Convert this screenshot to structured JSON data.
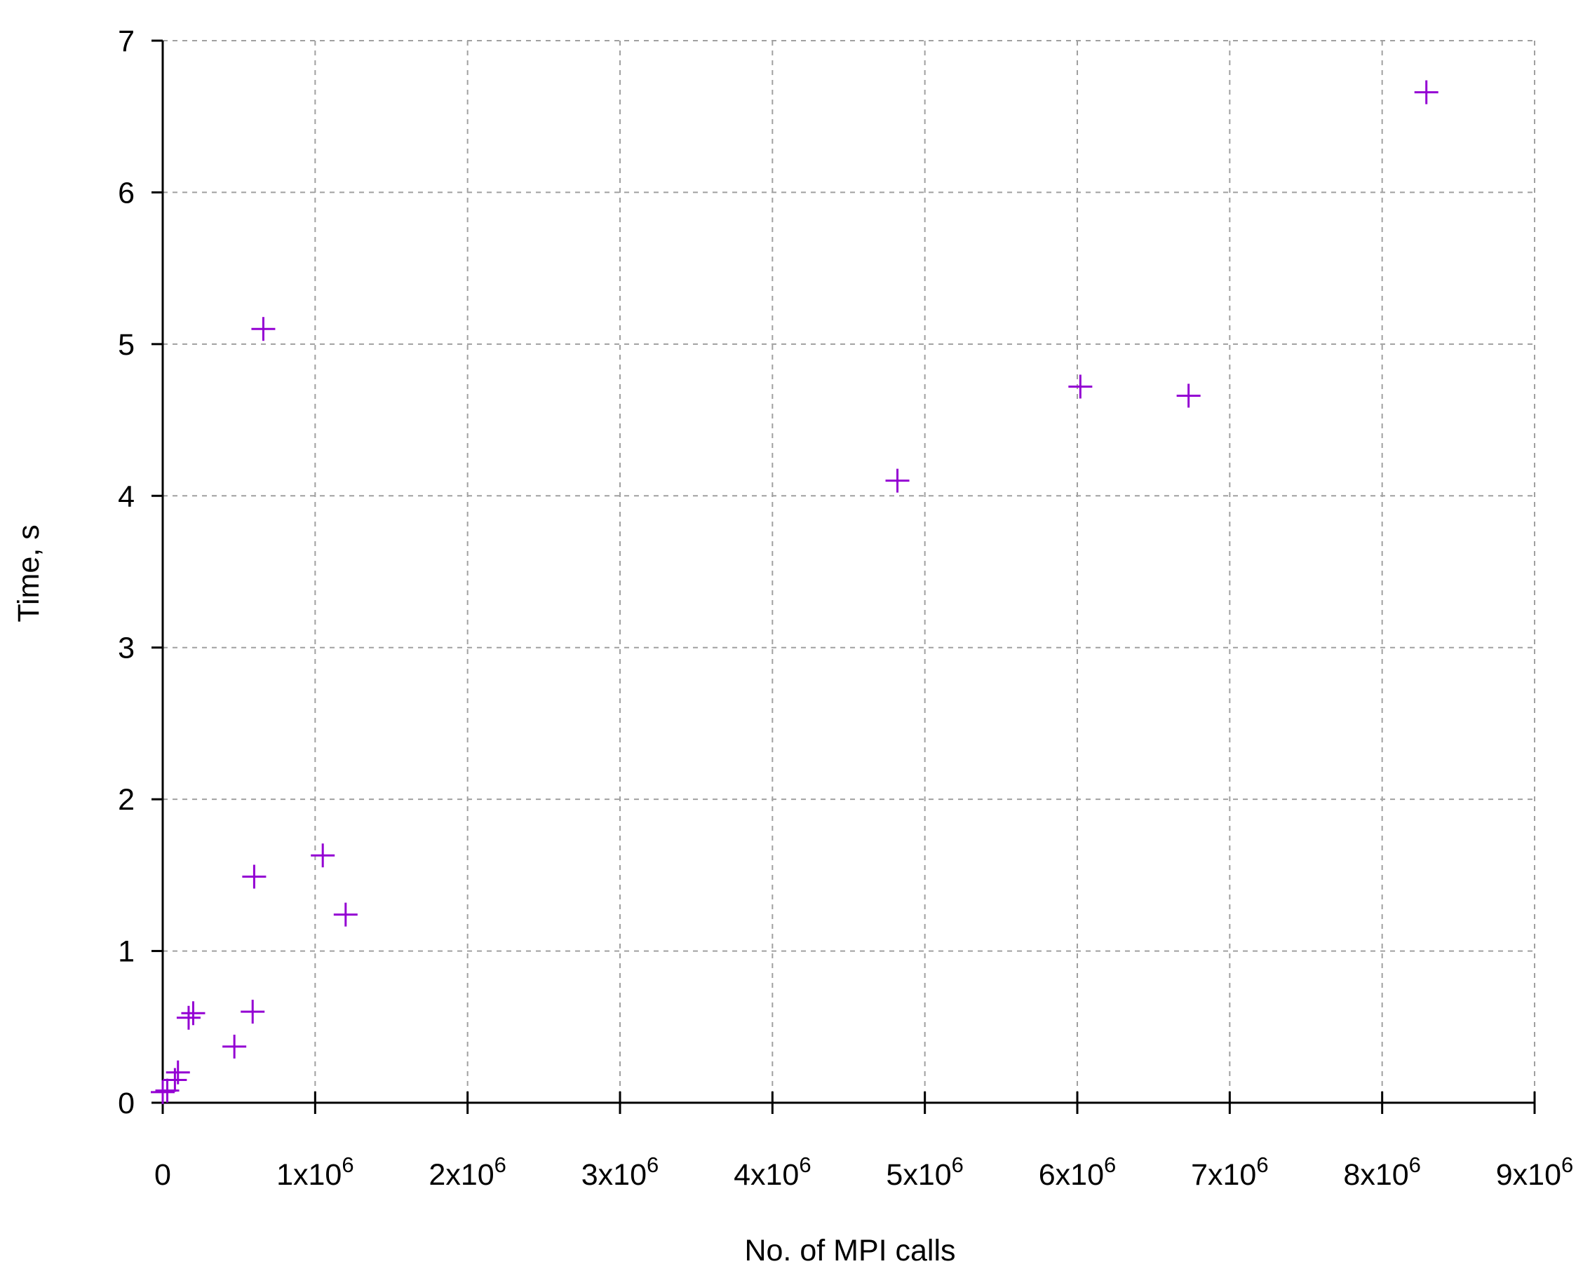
{
  "chart_data": {
    "type": "scatter",
    "title": "",
    "xlabel": "No. of MPI calls",
    "ylabel": "Time, s",
    "xlim": [
      0,
      9000000
    ],
    "ylim": [
      0,
      7
    ],
    "grid": true,
    "x_ticks": [
      {
        "value": 0,
        "base": "0",
        "exp": ""
      },
      {
        "value": 1000000,
        "base": "1x10",
        "exp": "6"
      },
      {
        "value": 2000000,
        "base": "2x10",
        "exp": "6"
      },
      {
        "value": 3000000,
        "base": "3x10",
        "exp": "6"
      },
      {
        "value": 4000000,
        "base": "4x10",
        "exp": "6"
      },
      {
        "value": 5000000,
        "base": "5x10",
        "exp": "6"
      },
      {
        "value": 6000000,
        "base": "6x10",
        "exp": "6"
      },
      {
        "value": 7000000,
        "base": "7x10",
        "exp": "6"
      },
      {
        "value": 8000000,
        "base": "8x10",
        "exp": "6"
      },
      {
        "value": 9000000,
        "base": "9x10",
        "exp": "6"
      }
    ],
    "y_ticks": [
      {
        "value": 0,
        "label": "0"
      },
      {
        "value": 1,
        "label": "1"
      },
      {
        "value": 2,
        "label": "2"
      },
      {
        "value": 3,
        "label": "3"
      },
      {
        "value": 4,
        "label": "4"
      },
      {
        "value": 5,
        "label": "5"
      },
      {
        "value": 6,
        "label": "6"
      },
      {
        "value": 7,
        "label": "7"
      }
    ],
    "marker": "plus",
    "marker_color": "#9400d3",
    "series": [
      {
        "points": [
          {
            "x": 0,
            "y": 0.07
          },
          {
            "x": 30000,
            "y": 0.08
          },
          {
            "x": 80000,
            "y": 0.15
          },
          {
            "x": 100000,
            "y": 0.2
          },
          {
            "x": 170000,
            "y": 0.56
          },
          {
            "x": 200000,
            "y": 0.59
          },
          {
            "x": 470000,
            "y": 0.37
          },
          {
            "x": 590000,
            "y": 0.6
          },
          {
            "x": 600000,
            "y": 1.49
          },
          {
            "x": 660000,
            "y": 5.1
          },
          {
            "x": 1050000,
            "y": 1.63
          },
          {
            "x": 1200000,
            "y": 1.24
          },
          {
            "x": 4820000,
            "y": 4.1
          },
          {
            "x": 6020000,
            "y": 4.72
          },
          {
            "x": 6730000,
            "y": 4.66
          },
          {
            "x": 8290000,
            "y": 6.66
          }
        ]
      }
    ]
  }
}
